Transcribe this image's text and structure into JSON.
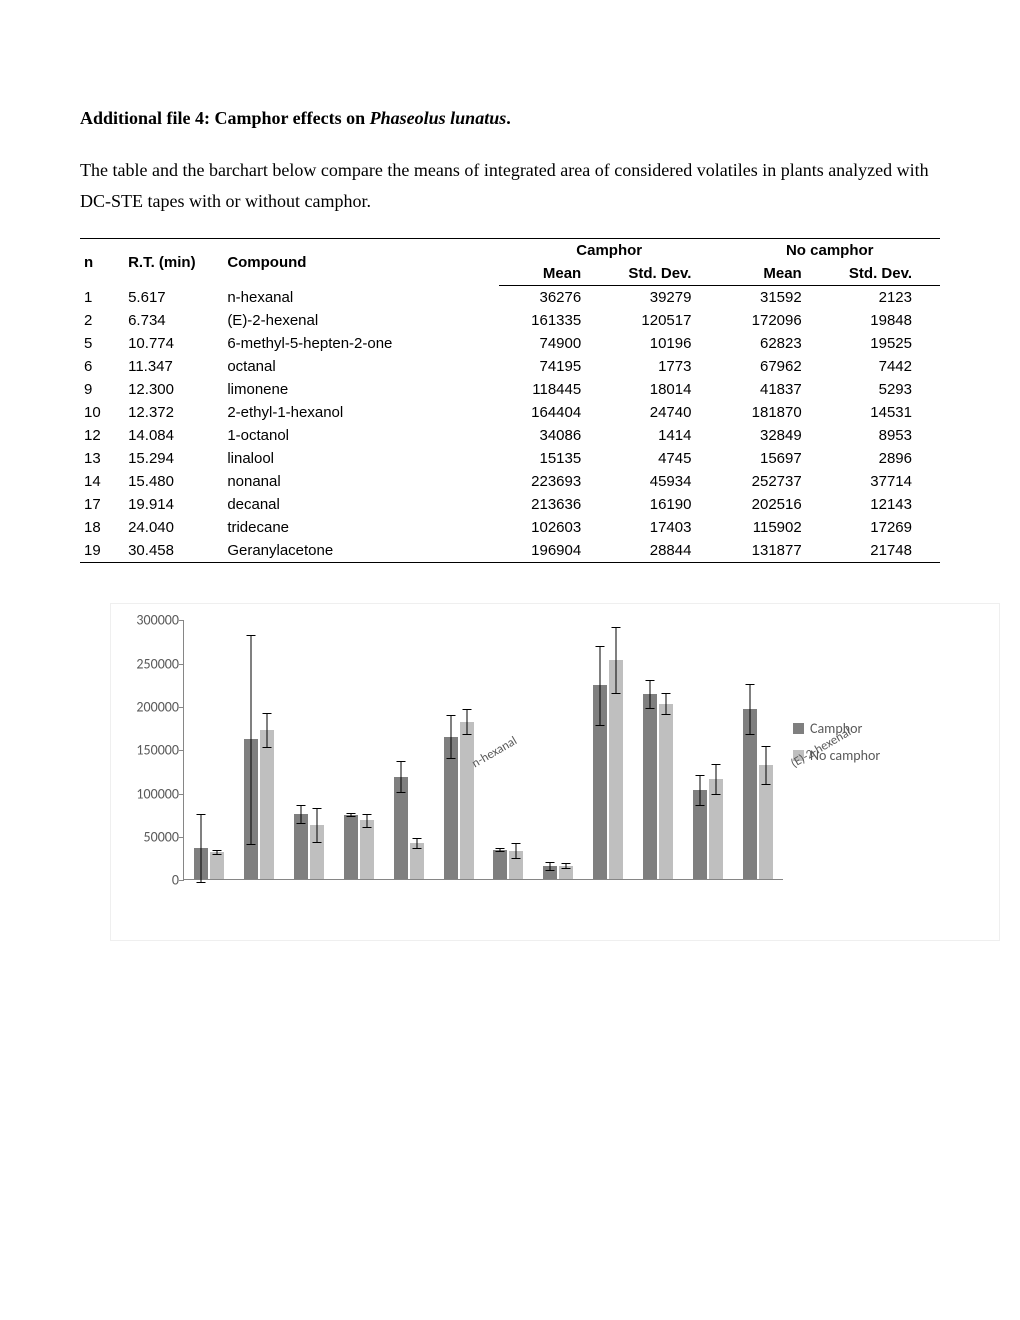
{
  "title_prefix": "Additional file 4: Camphor effects on ",
  "title_species": "Phaseolus lunatus",
  "title_suffix": ".",
  "description": "The table and the barchart below compare the means of integrated area of considered volatiles in plants analyzed with DC-STE tapes with or without camphor.",
  "table": {
    "headers": {
      "n": "n",
      "rt": "R.T. (min)",
      "compound": "Compound",
      "camphor": "Camphor",
      "no_camphor": "No camphor",
      "mean": "Mean",
      "std": "Std. Dev."
    },
    "rows": [
      {
        "n": "1",
        "rt": "5.617",
        "compound": "n-hexanal",
        "c_mean": "36276",
        "c_sd": "39279",
        "nc_mean": "31592",
        "nc_sd": "2123"
      },
      {
        "n": "2",
        "rt": "6.734",
        "compound": "(E)-2-hexenal",
        "c_mean": "161335",
        "c_sd": "120517",
        "nc_mean": "172096",
        "nc_sd": "19848"
      },
      {
        "n": "5",
        "rt": "10.774",
        "compound": "6-methyl-5-hepten-2-one",
        "c_mean": "74900",
        "c_sd": "10196",
        "nc_mean": "62823",
        "nc_sd": "19525"
      },
      {
        "n": "6",
        "rt": "11.347",
        "compound": "octanal",
        "c_mean": "74195",
        "c_sd": "1773",
        "nc_mean": "67962",
        "nc_sd": "7442"
      },
      {
        "n": "9",
        "rt": "12.300",
        "compound": "limonene",
        "c_mean": "118445",
        "c_sd": "18014",
        "nc_mean": "41837",
        "nc_sd": "5293"
      },
      {
        "n": "10",
        "rt": "12.372",
        "compound": "2-ethyl-1-hexanol",
        "c_mean": "164404",
        "c_sd": "24740",
        "nc_mean": "181870",
        "nc_sd": "14531"
      },
      {
        "n": "12",
        "rt": "14.084",
        "compound": "1-octanol",
        "c_mean": "34086",
        "c_sd": "1414",
        "nc_mean": "32849",
        "nc_sd": "8953"
      },
      {
        "n": "13",
        "rt": "15.294",
        "compound": "linalool",
        "c_mean": "15135",
        "c_sd": "4745",
        "nc_mean": "15697",
        "nc_sd": "2896"
      },
      {
        "n": "14",
        "rt": "15.480",
        "compound": "nonanal",
        "c_mean": "223693",
        "c_sd": "45934",
        "nc_mean": "252737",
        "nc_sd": "37714"
      },
      {
        "n": "17",
        "rt": "19.914",
        "compound": "decanal",
        "c_mean": "213636",
        "c_sd": "16190",
        "nc_mean": "202516",
        "nc_sd": "12143"
      },
      {
        "n": "18",
        "rt": "24.040",
        "compound": "tridecane",
        "c_mean": "102603",
        "c_sd": "17403",
        "nc_mean": "115902",
        "nc_sd": "17269"
      },
      {
        "n": "19",
        "rt": "30.458",
        "compound": "Geranylacetone",
        "c_mean": "196904",
        "c_sd": "28844",
        "nc_mean": "131877",
        "nc_sd": "21748"
      }
    ]
  },
  "chart": {
    "type": "bar",
    "y_max": 300000,
    "y_ticks": [
      0,
      50000,
      100000,
      150000,
      200000,
      250000,
      300000
    ],
    "series": [
      {
        "name": "Camphor",
        "color": "#7f7f7f"
      },
      {
        "name": "No camphor",
        "color": "#bfbfbf"
      }
    ],
    "axis_color": "#868686",
    "label_fontsize": 14,
    "xlabel_fontsize": 12.5,
    "background_color": "#ffffff",
    "categories": [
      "n-hexanal",
      "(E)-2-hexenal",
      "6-methyl-5-hepten-2-one",
      "octanal",
      "limonene",
      "2-ethyl-1-hexanol",
      "1-octanol",
      "linalool",
      "nonanal",
      "decanal",
      "tridecane",
      "geranylacetone"
    ],
    "data": [
      {
        "c": 36276,
        "c_sd": 39279,
        "nc": 31592,
        "nc_sd": 2123
      },
      {
        "c": 161335,
        "c_sd": 120517,
        "nc": 172096,
        "nc_sd": 19848
      },
      {
        "c": 74900,
        "c_sd": 10196,
        "nc": 62823,
        "nc_sd": 19525
      },
      {
        "c": 74195,
        "c_sd": 1773,
        "nc": 67962,
        "nc_sd": 7442
      },
      {
        "c": 118445,
        "c_sd": 18014,
        "nc": 41837,
        "nc_sd": 5293
      },
      {
        "c": 164404,
        "c_sd": 24740,
        "nc": 181870,
        "nc_sd": 14531
      },
      {
        "c": 34086,
        "c_sd": 1414,
        "nc": 32849,
        "nc_sd": 8953
      },
      {
        "c": 15135,
        "c_sd": 4745,
        "nc": 15697,
        "nc_sd": 2896
      },
      {
        "c": 223693,
        "c_sd": 45934,
        "nc": 252737,
        "nc_sd": 37714
      },
      {
        "c": 213636,
        "c_sd": 16190,
        "nc": 202516,
        "nc_sd": 12143
      },
      {
        "c": 102603,
        "c_sd": 17403,
        "nc": 115902,
        "nc_sd": 17269
      },
      {
        "c": 196904,
        "c_sd": 28844,
        "nc": 131877,
        "nc_sd": 21748
      }
    ]
  }
}
